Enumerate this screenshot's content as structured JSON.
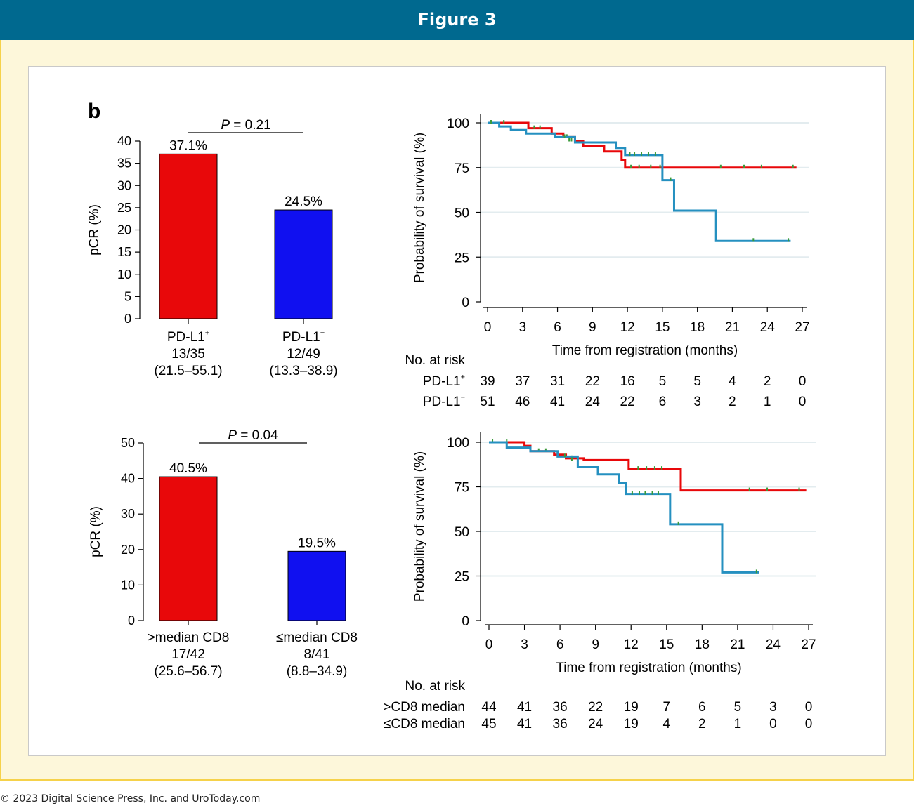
{
  "header": {
    "title": "Figure 3"
  },
  "footer": {
    "copyright": "© 2023 Digital Science Press, Inc. and UroToday.com"
  },
  "panel_label": "b",
  "colors": {
    "red": "#e8080a",
    "blue": "#1010f0",
    "teal": "#2590c0",
    "green": "#3a9a3a",
    "header_bg": "#00698f",
    "frame_bg": "#fdf7da"
  },
  "chart_data": [
    {
      "type": "bar",
      "ylabel": "pCR (%)",
      "ylim": [
        0,
        40
      ],
      "yticks": [
        0,
        5,
        10,
        15,
        20,
        25,
        30,
        35,
        40
      ],
      "p_value": {
        "label": "P",
        "text": " = 0.21"
      },
      "bars": [
        {
          "value": 37.1,
          "label": "37.1%",
          "name": "PD-L1",
          "sup": "+",
          "count": "13/35",
          "ci": "(21.5–55.1)",
          "color": "#e8080a"
        },
        {
          "value": 24.5,
          "label": "24.5%",
          "name": "PD-L1",
          "sup": "−",
          "count": "12/49",
          "ci": "(13.3–38.9)",
          "color": "#1010f0"
        }
      ]
    },
    {
      "type": "line",
      "ylabel": "Probability of survival (%)",
      "xlabel": "Time from registration (months)",
      "xlim": [
        0,
        27
      ],
      "ylim": [
        0,
        100
      ],
      "xticks": [
        0,
        3,
        6,
        9,
        12,
        15,
        18,
        21,
        24,
        27
      ],
      "yticks": [
        0,
        25,
        50,
        75,
        100
      ],
      "series": [
        {
          "name": "PD-L1+",
          "color": "#e8080a",
          "steps": [
            [
              0,
              100
            ],
            [
              2.5,
              100
            ],
            [
              3.5,
              97
            ],
            [
              5.5,
              94
            ],
            [
              6.5,
              92
            ],
            [
              7.5,
              90
            ],
            [
              8.2,
              87
            ],
            [
              10,
              84
            ],
            [
              11.5,
              79
            ],
            [
              11.8,
              75
            ],
            [
              26.5,
              75
            ]
          ],
          "censors": [
            [
              4,
              97
            ],
            [
              4.5,
              97
            ],
            [
              6.8,
              92
            ],
            [
              7.2,
              90
            ],
            [
              12.3,
              75
            ],
            [
              13,
              75
            ],
            [
              14,
              75
            ],
            [
              14.8,
              75
            ],
            [
              20,
              75
            ],
            [
              22,
              75
            ],
            [
              23.5,
              75
            ],
            [
              26.2,
              75
            ]
          ]
        },
        {
          "name": "PD-L1−",
          "color": "#2590c0",
          "steps": [
            [
              0,
              100
            ],
            [
              1,
              98
            ],
            [
              2,
              96
            ],
            [
              3.3,
              94
            ],
            [
              5.8,
              92
            ],
            [
              7.5,
              89
            ],
            [
              11,
              86
            ],
            [
              11.8,
              82
            ],
            [
              15,
              68
            ],
            [
              16,
              51
            ],
            [
              19.5,
              51
            ],
            [
              19.6,
              34
            ],
            [
              26,
              34
            ]
          ],
          "censors": [
            [
              0.3,
              100
            ],
            [
              1.4,
              100
            ],
            [
              6.6,
              92
            ],
            [
              7,
              90
            ],
            [
              12.2,
              82
            ],
            [
              12.6,
              82
            ],
            [
              13.2,
              82
            ],
            [
              13.8,
              82
            ],
            [
              14.4,
              82
            ],
            [
              15.7,
              68
            ],
            [
              22.8,
              34
            ],
            [
              25.8,
              34
            ]
          ]
        }
      ],
      "risk_table": {
        "title": "No. at risk",
        "rows": [
          {
            "label": "PD-L1",
            "sup": "+",
            "values": [
              "39",
              "37",
              "31",
              "22",
              "16",
              "5",
              "5",
              "4",
              "2",
              "0"
            ]
          },
          {
            "label": "PD-L1",
            "sup": "−",
            "values": [
              "51",
              "46",
              "41",
              "24",
              "22",
              "6",
              "3",
              "2",
              "1",
              "0"
            ]
          }
        ]
      }
    },
    {
      "type": "bar",
      "ylabel": "pCR (%)",
      "ylim": [
        0,
        50
      ],
      "yticks": [
        0,
        10,
        20,
        30,
        40,
        50
      ],
      "p_value": {
        "label": "P",
        "text": " = 0.04"
      },
      "bars": [
        {
          "value": 40.5,
          "label": "40.5%",
          "name": ">median CD8",
          "sup": "",
          "count": "17/42",
          "ci": "(25.6–56.7)",
          "color": "#e8080a"
        },
        {
          "value": 19.5,
          "label": "19.5%",
          "name": "≤median CD8",
          "sup": "",
          "count": "8/41",
          "ci": "(8.8–34.9)",
          "color": "#1010f0"
        }
      ]
    },
    {
      "type": "line",
      "ylabel": "Probability of survival (%)",
      "xlabel": "Time from registration (months)",
      "xlim": [
        0,
        27
      ],
      "ylim": [
        0,
        100
      ],
      "xticks": [
        0,
        3,
        6,
        9,
        12,
        15,
        18,
        21,
        24,
        27
      ],
      "yticks": [
        0,
        25,
        50,
        75,
        100
      ],
      "series": [
        {
          "name": ">CD8 median",
          "color": "#e8080a",
          "steps": [
            [
              0,
              100
            ],
            [
              2.5,
              100
            ],
            [
              3,
              98
            ],
            [
              3.5,
              95
            ],
            [
              5.5,
              93
            ],
            [
              6.5,
              91
            ],
            [
              8,
              90
            ],
            [
              11.8,
              85
            ],
            [
              16,
              85
            ],
            [
              16.2,
              73
            ],
            [
              26.8,
              73
            ]
          ],
          "censors": [
            [
              0.3,
              100
            ],
            [
              1.5,
              100
            ],
            [
              4.2,
              95
            ],
            [
              4.8,
              95
            ],
            [
              7,
              91
            ],
            [
              7.5,
              90
            ],
            [
              12.6,
              85
            ],
            [
              13.3,
              85
            ],
            [
              14,
              85
            ],
            [
              14.6,
              85
            ],
            [
              22,
              73
            ],
            [
              23.5,
              73
            ],
            [
              26.2,
              73
            ]
          ]
        },
        {
          "name": "≤CD8 median",
          "color": "#2590c0",
          "steps": [
            [
              0,
              100
            ],
            [
              1.5,
              97
            ],
            [
              3.5,
              95
            ],
            [
              5.8,
              92
            ],
            [
              7.5,
              86
            ],
            [
              9.2,
              82
            ],
            [
              11,
              77
            ],
            [
              11.6,
              71
            ],
            [
              15,
              71
            ],
            [
              15.3,
              54
            ],
            [
              19.5,
              54
            ],
            [
              19.7,
              27
            ],
            [
              22.8,
              27
            ]
          ],
          "censors": [
            [
              6.4,
              92
            ],
            [
              7,
              90
            ],
            [
              12.1,
              71
            ],
            [
              12.7,
              71
            ],
            [
              13.2,
              71
            ],
            [
              13.8,
              71
            ],
            [
              14.3,
              71
            ],
            [
              16,
              54
            ],
            [
              22.6,
              27
            ]
          ]
        }
      ],
      "risk_table": {
        "title": "No. at risk",
        "rows": [
          {
            "label": ">CD8 median",
            "sup": "",
            "values": [
              "44",
              "41",
              "36",
              "22",
              "19",
              "7",
              "6",
              "5",
              "3",
              "0"
            ]
          },
          {
            "label": "≤CD8 median",
            "sup": "",
            "values": [
              "45",
              "41",
              "36",
              "24",
              "19",
              "4",
              "2",
              "1",
              "0",
              "0"
            ]
          }
        ]
      }
    }
  ]
}
